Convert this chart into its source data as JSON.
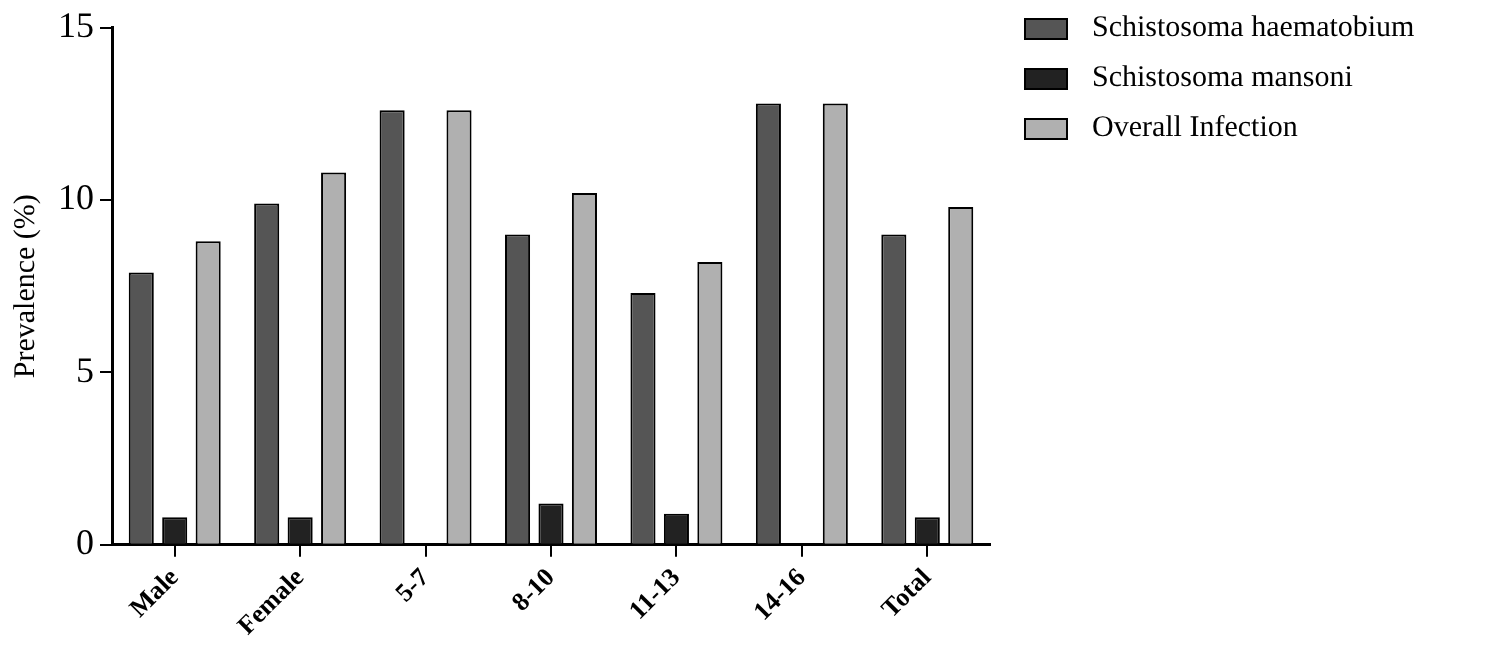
{
  "chart_data": {
    "type": "bar",
    "ylabel": "Prevalence (%)",
    "categories": [
      "Male",
      "Female",
      "5-7",
      "8-10",
      "11-13",
      "14-16",
      "Total"
    ],
    "series": [
      {
        "name": "Schistosoma haematobium",
        "color": "#555555",
        "values": [
          7.9,
          9.9,
          12.6,
          9.0,
          7.3,
          12.8,
          9.0
        ]
      },
      {
        "name": "Schistosoma mansoni",
        "color": "#222222",
        "values": [
          0.8,
          0.8,
          0,
          1.2,
          0.9,
          0,
          0.8
        ]
      },
      {
        "name": "Overall Infection",
        "color": "#b0b0b0",
        "values": [
          8.8,
          10.8,
          12.6,
          10.2,
          8.2,
          12.8,
          9.8
        ]
      }
    ],
    "ylim": [
      0,
      15
    ],
    "yticks": [
      0,
      5,
      10,
      15
    ],
    "grid": false,
    "legend": "right"
  }
}
